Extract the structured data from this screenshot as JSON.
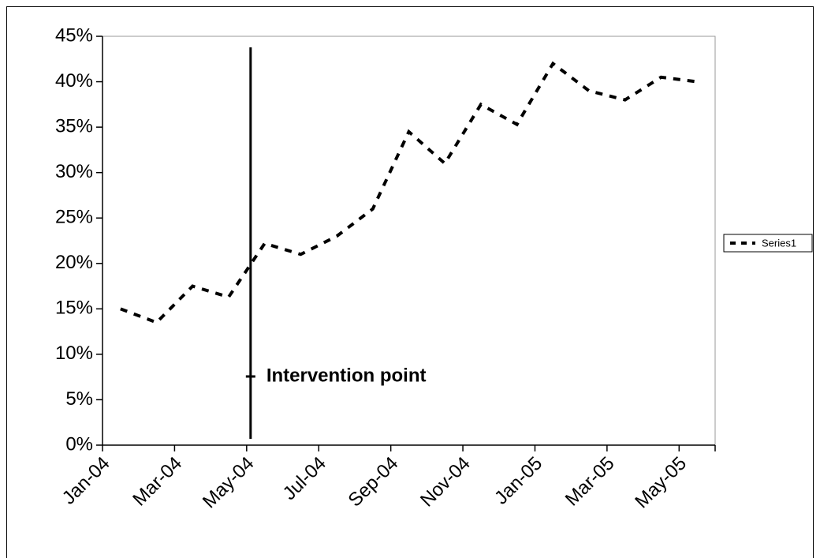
{
  "chart_data": {
    "type": "line",
    "categories": [
      "Jan-04",
      null,
      "Mar-04",
      null,
      "May-04",
      null,
      "Jul-04",
      null,
      "Sep-04",
      null,
      "Nov-04",
      null,
      "Jan-05",
      null,
      "Mar-05",
      null,
      "May-05"
    ],
    "series": [
      {
        "name": "Series1",
        "color": "#000000",
        "values": [
          15,
          13.5,
          17.5,
          16.3,
          22.2,
          21,
          23,
          26,
          34.5,
          31,
          37.5,
          35.3,
          42,
          39,
          38,
          40.5,
          40
        ]
      }
    ],
    "ylim": [
      0,
      45
    ],
    "yticks": [
      {
        "value": 0,
        "label": "0%"
      },
      {
        "value": 5,
        "label": "5%"
      },
      {
        "value": 10,
        "label": "10%"
      },
      {
        "value": 15,
        "label": "15%"
      },
      {
        "value": 20,
        "label": "20%"
      },
      {
        "value": 25,
        "label": "25%"
      },
      {
        "value": 30,
        "label": "30%"
      },
      {
        "value": 35,
        "label": "35%"
      },
      {
        "value": 40,
        "label": "40%"
      },
      {
        "value": 45,
        "label": "45%"
      }
    ],
    "annotations": [
      {
        "text": "Intervention point"
      }
    ],
    "legend": "right",
    "grid": false
  }
}
